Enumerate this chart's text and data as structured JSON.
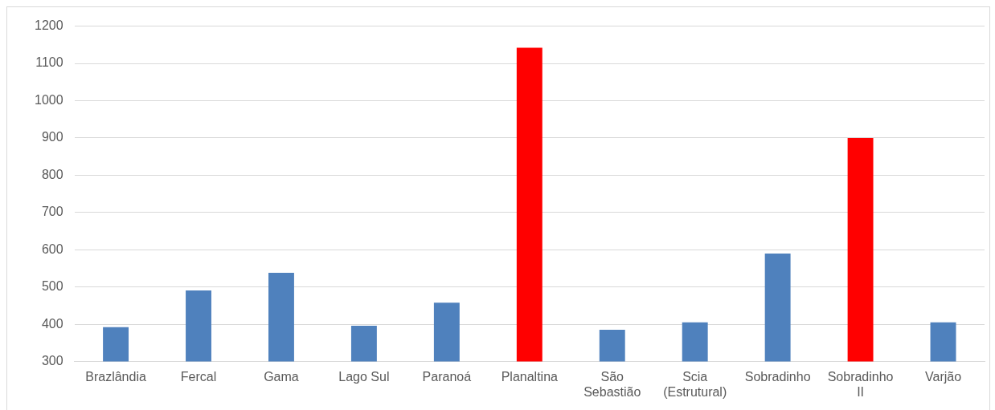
{
  "chart_data": {
    "type": "bar",
    "categories": [
      "Brazlândia",
      "Fercal",
      "Gama",
      "Lago Sul",
      "Paranoá",
      "Planaltina",
      "São\nSebastião",
      "Scia\n(Estrutural)",
      "Sobradinho",
      "Sobradinho\nII",
      "Varjão"
    ],
    "values": [
      392,
      491,
      538,
      396,
      458,
      1142,
      385,
      405,
      590,
      900,
      405
    ],
    "colors": [
      "#4f81bd",
      "#4f81bd",
      "#4f81bd",
      "#4f81bd",
      "#4f81bd",
      "#ff0000",
      "#4f81bd",
      "#4f81bd",
      "#4f81bd",
      "#ff0000",
      "#4f81bd"
    ],
    "ylim": [
      300,
      1200
    ],
    "yticks": [
      300,
      400,
      500,
      600,
      700,
      800,
      900,
      1000,
      1100,
      1200
    ],
    "grid": "y",
    "legend": false
  }
}
